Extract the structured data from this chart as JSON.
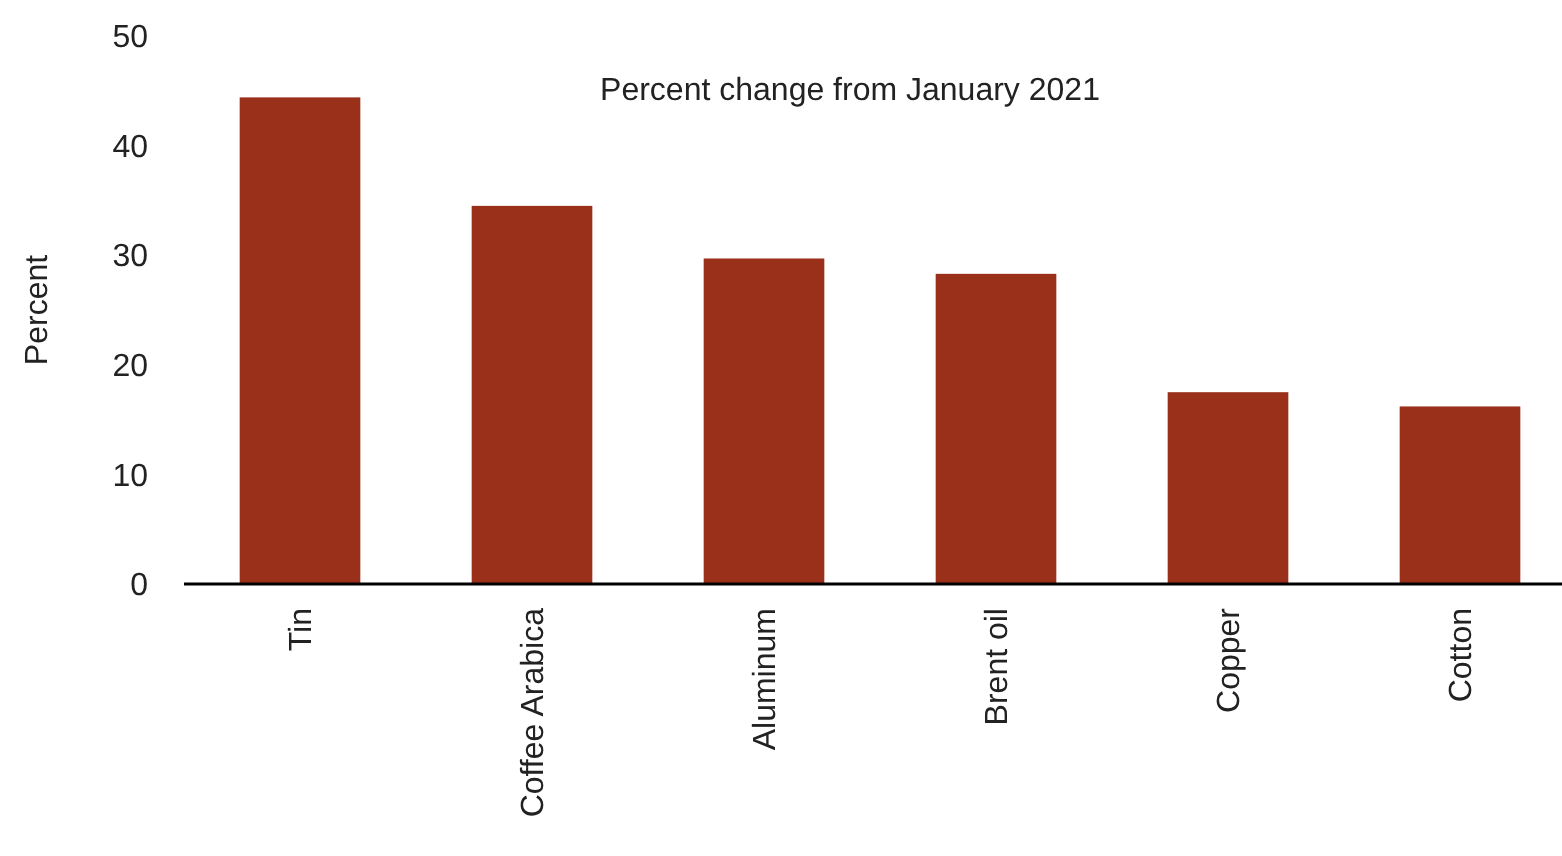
{
  "chart_data": {
    "type": "bar",
    "title": "Percent change from January 2021",
    "ylabel": "Percent",
    "categories": [
      "Tin",
      "Coffee Arabica",
      "Aluminum",
      "Brent oil",
      "Copper",
      "Cotton"
    ],
    "values": [
      44.4,
      34.5,
      29.7,
      28.3,
      17.5,
      16.2
    ],
    "color": "#9a2f1a",
    "ylim": [
      0,
      50
    ],
    "yticks": [
      0,
      10,
      20,
      30,
      40,
      50
    ],
    "grid": false
  }
}
